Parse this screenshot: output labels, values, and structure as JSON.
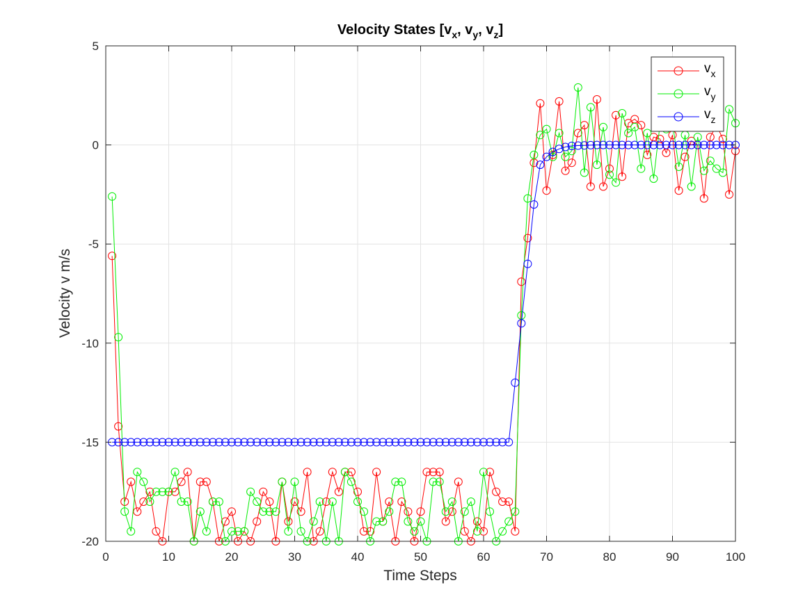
{
  "chart_data": {
    "type": "line",
    "title": {
      "main": "Velocity States [v",
      "parts": [
        [
          "x",
          ", v"
        ],
        [
          "y",
          ", v"
        ],
        [
          "z",
          "]"
        ]
      ]
    },
    "xlabel": "Time Steps",
    "ylabel": "Velocity v m/s",
    "xlim": [
      0,
      100
    ],
    "ylim": [
      -20,
      5
    ],
    "xticks": [
      0,
      10,
      20,
      30,
      40,
      50,
      60,
      70,
      80,
      90,
      100
    ],
    "yticks": [
      5,
      0,
      -5,
      -10,
      -15,
      -20
    ],
    "grid": true,
    "legend_position": "top-right",
    "marker": "circle",
    "series": [
      {
        "name": "v",
        "sub": "x",
        "color": "#ff0000",
        "x": [
          1,
          2,
          3,
          4,
          5,
          6,
          7,
          8,
          9,
          10,
          11,
          12,
          13,
          14,
          15,
          16,
          17,
          18,
          19,
          20,
          21,
          22,
          23,
          24,
          25,
          26,
          27,
          28,
          29,
          30,
          31,
          32,
          33,
          34,
          35,
          36,
          37,
          38,
          39,
          40,
          41,
          42,
          43,
          44,
          45,
          46,
          47,
          48,
          49,
          50,
          51,
          52,
          53,
          54,
          55,
          56,
          57,
          58,
          59,
          60,
          61,
          62,
          63,
          64,
          65,
          66,
          67,
          68,
          69,
          70,
          71,
          72,
          73,
          74,
          75,
          76,
          77,
          78,
          79,
          80,
          81,
          82,
          83,
          84,
          85,
          86,
          87,
          88,
          89,
          90,
          91,
          92,
          93,
          94,
          95,
          96,
          97,
          98,
          99,
          100
        ],
        "values": [
          -5.6,
          -14.2,
          -18.0,
          -17.0,
          -18.5,
          -18.0,
          -17.5,
          -19.5,
          -20.0,
          -17.5,
          -17.5,
          -17.0,
          -16.5,
          -20.0,
          -17.0,
          -17.0,
          -18.0,
          -20.0,
          -19.0,
          -18.5,
          -20.0,
          -19.5,
          -20.0,
          -19.0,
          -17.5,
          -18.0,
          -20.0,
          -17.0,
          -19.0,
          -18.0,
          -18.5,
          -16.5,
          -20.0,
          -19.5,
          -18.0,
          -16.5,
          -17.5,
          -16.5,
          -16.5,
          -17.5,
          -19.5,
          -19.5,
          -16.5,
          -19.0,
          -18.0,
          -20.0,
          -18.0,
          -18.5,
          -20.0,
          -18.5,
          -16.5,
          -16.5,
          -16.5,
          -19.0,
          -18.5,
          -17.0,
          -19.5,
          -20.0,
          -19.0,
          -19.5,
          -16.5,
          -17.5,
          -18.0,
          -18.0,
          -19.5,
          -6.9,
          -4.7,
          -0.9,
          2.1,
          -2.3,
          -0.5,
          2.2,
          -1.3,
          -0.9,
          0.6,
          1.0,
          -2.1,
          2.3,
          -2.1,
          -1.2,
          1.5,
          -1.6,
          1.1,
          1.3,
          1.0,
          -0.5,
          0.4,
          0.3,
          -0.4,
          0.5,
          -2.3,
          -0.6,
          0.2,
          0.0,
          -2.7,
          0.4,
          1.0,
          0.3,
          -2.5,
          -0.3
        ]
      },
      {
        "name": "v",
        "sub": "y",
        "color": "#00ee00",
        "x": [
          1,
          2,
          3,
          4,
          5,
          6,
          7,
          8,
          9,
          10,
          11,
          12,
          13,
          14,
          15,
          16,
          17,
          18,
          19,
          20,
          21,
          22,
          23,
          24,
          25,
          26,
          27,
          28,
          29,
          30,
          31,
          32,
          33,
          34,
          35,
          36,
          37,
          38,
          39,
          40,
          41,
          42,
          43,
          44,
          45,
          46,
          47,
          48,
          49,
          50,
          51,
          52,
          53,
          54,
          55,
          56,
          57,
          58,
          59,
          60,
          61,
          62,
          63,
          64,
          65,
          66,
          67,
          68,
          69,
          70,
          71,
          72,
          73,
          74,
          75,
          76,
          77,
          78,
          79,
          80,
          81,
          82,
          83,
          84,
          85,
          86,
          87,
          88,
          89,
          90,
          91,
          92,
          93,
          94,
          95,
          96,
          97,
          98,
          99,
          100
        ],
        "values": [
          -2.6,
          -9.7,
          -18.5,
          -19.5,
          -16.5,
          -17.0,
          -18.0,
          -17.5,
          -17.5,
          -17.5,
          -16.5,
          -18.0,
          -18.0,
          -20.0,
          -18.5,
          -19.5,
          -18.0,
          -18.0,
          -20.0,
          -19.5,
          -19.5,
          -19.5,
          -17.5,
          -18.0,
          -18.5,
          -18.5,
          -18.5,
          -17.0,
          -19.5,
          -17.0,
          -19.5,
          -20.0,
          -19.0,
          -18.0,
          -20.0,
          -18.0,
          -20.0,
          -16.5,
          -17.0,
          -18.0,
          -18.5,
          -20.0,
          -19.0,
          -19.0,
          -18.5,
          -17.0,
          -17.0,
          -19.0,
          -19.5,
          -19.0,
          -20.0,
          -17.0,
          -17.0,
          -18.5,
          -18.0,
          -20.0,
          -18.5,
          -18.0,
          -19.5,
          -16.5,
          -18.5,
          -20.0,
          -19.5,
          -19.0,
          -18.5,
          -8.6,
          -2.7,
          -0.5,
          0.5,
          0.8,
          -0.6,
          0.6,
          -0.6,
          -0.3,
          2.9,
          -1.4,
          1.9,
          -1.0,
          0.9,
          -1.5,
          -1.9,
          1.6,
          0.6,
          0.9,
          -1.2,
          0.6,
          -1.7,
          1.0,
          0.8,
          1.1,
          -1.1,
          0.5,
          -2.1,
          0.4,
          -1.3,
          -0.8,
          -1.2,
          -1.4,
          1.8,
          1.1
        ]
      },
      {
        "name": "v",
        "sub": "z",
        "color": "#0000ff",
        "x": [
          1,
          2,
          3,
          4,
          5,
          6,
          7,
          8,
          9,
          10,
          11,
          12,
          13,
          14,
          15,
          16,
          17,
          18,
          19,
          20,
          21,
          22,
          23,
          24,
          25,
          26,
          27,
          28,
          29,
          30,
          31,
          32,
          33,
          34,
          35,
          36,
          37,
          38,
          39,
          40,
          41,
          42,
          43,
          44,
          45,
          46,
          47,
          48,
          49,
          50,
          51,
          52,
          53,
          54,
          55,
          56,
          57,
          58,
          59,
          60,
          61,
          62,
          63,
          64,
          65,
          66,
          67,
          68,
          69,
          70,
          71,
          72,
          73,
          74,
          75,
          76,
          77,
          78,
          79,
          80,
          81,
          82,
          83,
          84,
          85,
          86,
          87,
          88,
          89,
          90,
          91,
          92,
          93,
          94,
          95,
          96,
          97,
          98,
          99,
          100
        ],
        "values": [
          -15,
          -15,
          -15,
          -15,
          -15,
          -15,
          -15,
          -15,
          -15,
          -15,
          -15,
          -15,
          -15,
          -15,
          -15,
          -15,
          -15,
          -15,
          -15,
          -15,
          -15,
          -15,
          -15,
          -15,
          -15,
          -15,
          -15,
          -15,
          -15,
          -15,
          -15,
          -15,
          -15,
          -15,
          -15,
          -15,
          -15,
          -15,
          -15,
          -15,
          -15,
          -15,
          -15,
          -15,
          -15,
          -15,
          -15,
          -15,
          -15,
          -15,
          -15,
          -15,
          -15,
          -15,
          -15,
          -15,
          -15,
          -15,
          -15,
          -15,
          -15,
          -15,
          -15,
          -15,
          -12.0,
          -9.0,
          -6.0,
          -3.0,
          -1.0,
          -0.6,
          -0.35,
          -0.2,
          -0.1,
          -0.05,
          -0.03,
          -0.02,
          -0.01,
          0,
          0,
          0,
          0,
          0,
          0,
          0,
          0,
          0,
          0,
          0,
          0,
          0,
          0,
          0,
          0,
          0,
          0,
          0,
          0,
          0,
          0,
          0
        ]
      }
    ]
  }
}
